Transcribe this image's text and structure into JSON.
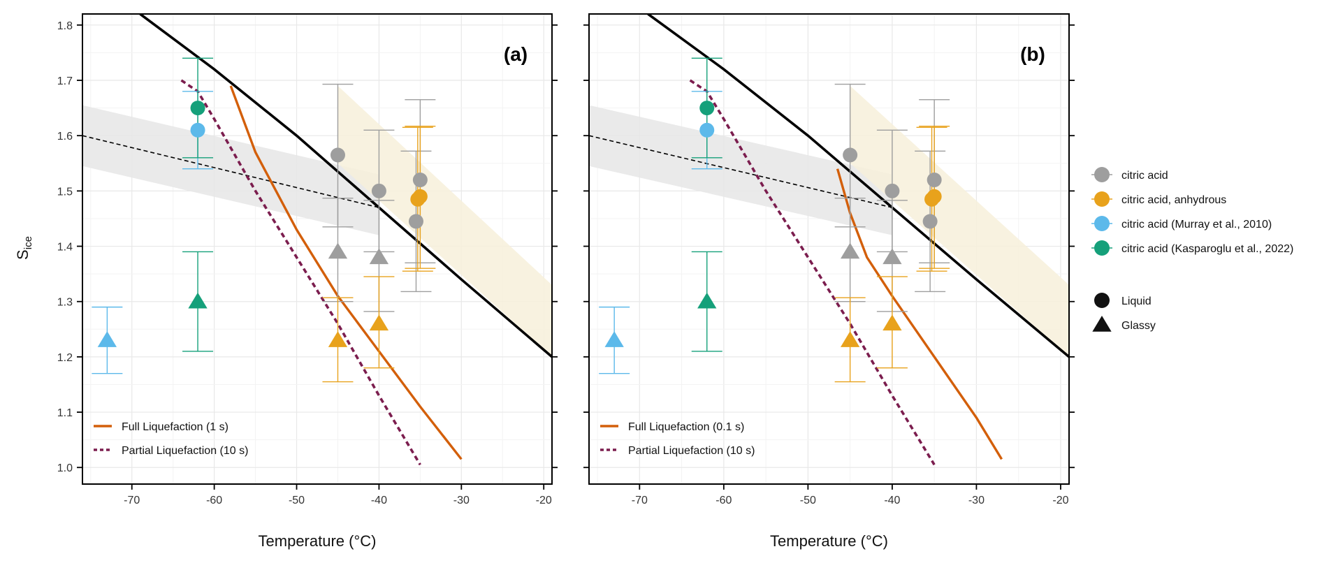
{
  "chart_data": [
    {
      "type": "scatter",
      "panel_label": "(a)",
      "xlabel": "Temperature (°C)",
      "ylabel_main": "S",
      "ylabel_sub": "ice",
      "xlim": [
        -76,
        -19
      ],
      "ylim": [
        0.97,
        1.82
      ],
      "x_ticks": [
        -70,
        -60,
        -50,
        -40,
        -30,
        -20
      ],
      "x_tick_labels": [
        "-70",
        "-60",
        "-50",
        "-40",
        "-30",
        "-20"
      ],
      "y_ticks": [
        1.0,
        1.1,
        1.2,
        1.3,
        1.4,
        1.5,
        1.6,
        1.7,
        1.8
      ],
      "y_tick_labels": [
        "1.0",
        "1.1",
        "1.2",
        "1.3",
        "1.4",
        "1.5",
        "1.6",
        "1.7",
        "1.8"
      ],
      "grid": true,
      "legend_position": "bottom-left",
      "curves": [
        {
          "name": "",
          "style": "black-solid",
          "points": [
            [
              -69,
              1.82
            ],
            [
              -60,
              1.72
            ],
            [
              -50,
              1.6
            ],
            [
              -40,
              1.47
            ],
            [
              -30,
              1.34
            ],
            [
              -19,
              1.2
            ]
          ]
        },
        {
          "name": "",
          "style": "black-dashed",
          "points": [
            [
              -76,
              1.6
            ],
            [
              -40,
              1.47
            ]
          ]
        },
        {
          "name": "Full Liquefaction (1 s)",
          "style": "orange-solid",
          "points": [
            [
              -58,
              1.69
            ],
            [
              -55,
              1.57
            ],
            [
              -50,
              1.43
            ],
            [
              -45,
              1.31
            ],
            [
              -40,
              1.21
            ],
            [
              -35,
              1.11
            ],
            [
              -30,
              1.015
            ]
          ]
        },
        {
          "name": "Partial Liquefaction (10 s)",
          "style": "purple-dashed",
          "points": [
            [
              -64,
              1.7
            ],
            [
              -62,
              1.68
            ],
            [
              -60,
              1.63
            ],
            [
              -55,
              1.5
            ],
            [
              -50,
              1.38
            ],
            [
              -45,
              1.26
            ],
            [
              -40,
              1.13
            ],
            [
              -35,
              1.005
            ]
          ]
        }
      ],
      "bands": [
        {
          "name": "",
          "color": "#e6e6e6",
          "upper": [
            [
              -76,
              1.655
            ],
            [
              -40,
              1.53
            ]
          ],
          "lower": [
            [
              -76,
              1.545
            ],
            [
              -40,
              1.42
            ]
          ]
        },
        {
          "name": "",
          "color": "#f7f0da",
          "polygon": [
            [
              -45,
              1.69
            ],
            [
              -19,
              1.33
            ],
            [
              -19,
              1.2
            ],
            [
              -45,
              1.55
            ]
          ]
        }
      ],
      "points": [
        {
          "series": "citric acid",
          "shape": "circle",
          "color": "#9e9e9e",
          "x": -45,
          "y": 1.565,
          "ylow": 1.435,
          "yhigh": 1.693
        },
        {
          "series": "citric acid",
          "shape": "circle",
          "color": "#9e9e9e",
          "x": -40,
          "y": 1.5,
          "ylow": 1.39,
          "yhigh": 1.61
        },
        {
          "series": "citric acid",
          "shape": "circle",
          "color": "#9e9e9e",
          "x": -35,
          "y": 1.52,
          "ylow": 1.37,
          "yhigh": 1.665
        },
        {
          "series": "citric acid",
          "shape": "circle",
          "color": "#9e9e9e",
          "x": -35.5,
          "y": 1.445,
          "ylow": 1.318,
          "yhigh": 1.572
        },
        {
          "series": "citric acid",
          "shape": "triangle",
          "color": "#9e9e9e",
          "x": -45,
          "y": 1.39,
          "ylow": 1.3,
          "yhigh": 1.487
        },
        {
          "series": "citric acid",
          "shape": "triangle",
          "color": "#9e9e9e",
          "x": -40,
          "y": 1.38,
          "ylow": 1.282,
          "yhigh": 1.483
        },
        {
          "series": "citric acid, anhydrous",
          "shape": "circle",
          "color": "#e8a21c",
          "x": -35,
          "y": 1.49,
          "ylow": 1.36,
          "yhigh": 1.617
        },
        {
          "series": "citric acid, anhydrous",
          "shape": "circle",
          "color": "#e8a21c",
          "x": -35.3,
          "y": 1.485,
          "ylow": 1.355,
          "yhigh": 1.615
        },
        {
          "series": "citric acid, anhydrous",
          "shape": "triangle",
          "color": "#e8a21c",
          "x": -45,
          "y": 1.23,
          "ylow": 1.155,
          "yhigh": 1.307
        },
        {
          "series": "citric acid, anhydrous",
          "shape": "triangle",
          "color": "#e8a21c",
          "x": -40,
          "y": 1.26,
          "ylow": 1.18,
          "yhigh": 1.345
        },
        {
          "series": "citric acid (Murray et al., 2010)",
          "shape": "circle",
          "color": "#5cb9ea",
          "x": -62,
          "y": 1.61,
          "ylow": 1.54,
          "yhigh": 1.68
        },
        {
          "series": "citric acid (Murray et al., 2010)",
          "shape": "triangle",
          "color": "#5cb9ea",
          "x": -73,
          "y": 1.23,
          "ylow": 1.17,
          "yhigh": 1.29
        },
        {
          "series": "citric acid (Kasparoglu et al., 2022)",
          "shape": "circle",
          "color": "#15a07a",
          "x": -62,
          "y": 1.65,
          "ylow": 1.56,
          "yhigh": 1.74
        },
        {
          "series": "citric acid (Kasparoglu et al., 2022)",
          "shape": "triangle",
          "color": "#15a07a",
          "x": -62,
          "y": 1.3,
          "ylow": 1.21,
          "yhigh": 1.39
        }
      ]
    },
    {
      "type": "scatter",
      "panel_label": "(b)",
      "xlabel": "Temperature (°C)",
      "xlim": [
        -76,
        -19
      ],
      "ylim": [
        0.97,
        1.82
      ],
      "x_ticks": [
        -70,
        -60,
        -50,
        -40,
        -30,
        -20
      ],
      "x_tick_labels": [
        "-70",
        "-60",
        "-50",
        "-40",
        "-30",
        "-20"
      ],
      "y_ticks": [
        1.0,
        1.1,
        1.2,
        1.3,
        1.4,
        1.5,
        1.6,
        1.7,
        1.8
      ],
      "grid": true,
      "legend_position": "bottom-left",
      "curves": [
        {
          "name": "",
          "style": "black-solid",
          "points": [
            [
              -69,
              1.82
            ],
            [
              -60,
              1.72
            ],
            [
              -50,
              1.6
            ],
            [
              -40,
              1.47
            ],
            [
              -30,
              1.34
            ],
            [
              -19,
              1.2
            ]
          ]
        },
        {
          "name": "",
          "style": "black-dashed",
          "points": [
            [
              -76,
              1.6
            ],
            [
              -40,
              1.47
            ]
          ]
        },
        {
          "name": "Full Liquefaction (0.1 s)",
          "style": "orange-solid",
          "points": [
            [
              -46.5,
              1.54
            ],
            [
              -45,
              1.46
            ],
            [
              -43,
              1.38
            ],
            [
              -40,
              1.31
            ],
            [
              -35,
              1.2
            ],
            [
              -30,
              1.09
            ],
            [
              -27,
              1.015
            ]
          ]
        },
        {
          "name": "Partial Liquefaction (10 s)",
          "style": "purple-dashed",
          "points": [
            [
              -64,
              1.7
            ],
            [
              -62,
              1.68
            ],
            [
              -60,
              1.63
            ],
            [
              -55,
              1.5
            ],
            [
              -50,
              1.38
            ],
            [
              -45,
              1.26
            ],
            [
              -40,
              1.13
            ],
            [
              -35,
              1.005
            ]
          ]
        }
      ],
      "bands": [
        {
          "name": "",
          "color": "#e6e6e6",
          "upper": [
            [
              -76,
              1.655
            ],
            [
              -40,
              1.53
            ]
          ],
          "lower": [
            [
              -76,
              1.545
            ],
            [
              -40,
              1.42
            ]
          ]
        },
        {
          "name": "",
          "color": "#f7f0da",
          "polygon": [
            [
              -45,
              1.69
            ],
            [
              -19,
              1.33
            ],
            [
              -19,
              1.2
            ],
            [
              -45,
              1.55
            ]
          ]
        }
      ],
      "points": [
        {
          "series": "citric acid",
          "shape": "circle",
          "color": "#9e9e9e",
          "x": -45,
          "y": 1.565,
          "ylow": 1.435,
          "yhigh": 1.693
        },
        {
          "series": "citric acid",
          "shape": "circle",
          "color": "#9e9e9e",
          "x": -40,
          "y": 1.5,
          "ylow": 1.39,
          "yhigh": 1.61
        },
        {
          "series": "citric acid",
          "shape": "circle",
          "color": "#9e9e9e",
          "x": -35,
          "y": 1.52,
          "ylow": 1.37,
          "yhigh": 1.665
        },
        {
          "series": "citric acid",
          "shape": "circle",
          "color": "#9e9e9e",
          "x": -35.5,
          "y": 1.445,
          "ylow": 1.318,
          "yhigh": 1.572
        },
        {
          "series": "citric acid",
          "shape": "triangle",
          "color": "#9e9e9e",
          "x": -45,
          "y": 1.39,
          "ylow": 1.3,
          "yhigh": 1.487
        },
        {
          "series": "citric acid",
          "shape": "triangle",
          "color": "#9e9e9e",
          "x": -40,
          "y": 1.38,
          "ylow": 1.282,
          "yhigh": 1.483
        },
        {
          "series": "citric acid, anhydrous",
          "shape": "circle",
          "color": "#e8a21c",
          "x": -35,
          "y": 1.49,
          "ylow": 1.36,
          "yhigh": 1.617
        },
        {
          "series": "citric acid, anhydrous",
          "shape": "circle",
          "color": "#e8a21c",
          "x": -35.3,
          "y": 1.485,
          "ylow": 1.355,
          "yhigh": 1.615
        },
        {
          "series": "citric acid, anhydrous",
          "shape": "triangle",
          "color": "#e8a21c",
          "x": -45,
          "y": 1.23,
          "ylow": 1.155,
          "yhigh": 1.307
        },
        {
          "series": "citric acid, anhydrous",
          "shape": "triangle",
          "color": "#e8a21c",
          "x": -40,
          "y": 1.26,
          "ylow": 1.18,
          "yhigh": 1.345
        },
        {
          "series": "citric acid (Murray et al., 2010)",
          "shape": "circle",
          "color": "#5cb9ea",
          "x": -62,
          "y": 1.61,
          "ylow": 1.54,
          "yhigh": 1.68
        },
        {
          "series": "citric acid (Murray et al., 2010)",
          "shape": "triangle",
          "color": "#5cb9ea",
          "x": -73,
          "y": 1.23,
          "ylow": 1.17,
          "yhigh": 1.29
        },
        {
          "series": "citric acid (Kasparoglu et al., 2022)",
          "shape": "circle",
          "color": "#15a07a",
          "x": -62,
          "y": 1.65,
          "ylow": 1.56,
          "yhigh": 1.74
        },
        {
          "series": "citric acid (Kasparoglu et al., 2022)",
          "shape": "triangle",
          "color": "#15a07a",
          "x": -62,
          "y": 1.3,
          "ylow": 1.21,
          "yhigh": 1.39
        }
      ]
    }
  ],
  "legend": {
    "series": [
      {
        "label": "citric acid",
        "color": "#9e9e9e"
      },
      {
        "label": "citric acid, anhydrous",
        "color": "#e8a21c"
      },
      {
        "label": "citric acid (Murray et al., 2010)",
        "color": "#5cb9ea"
      },
      {
        "label": "citric acid (Kasparoglu et al., 2022)",
        "color": "#15a07a"
      }
    ],
    "shapes": [
      {
        "label": "Liquid",
        "shape": "circle"
      },
      {
        "label": "Glassy",
        "shape": "triangle"
      }
    ]
  },
  "colors": {
    "orange_line": "#d35f0a",
    "purple_line": "#7b1d4e",
    "black_line": "#000000"
  }
}
